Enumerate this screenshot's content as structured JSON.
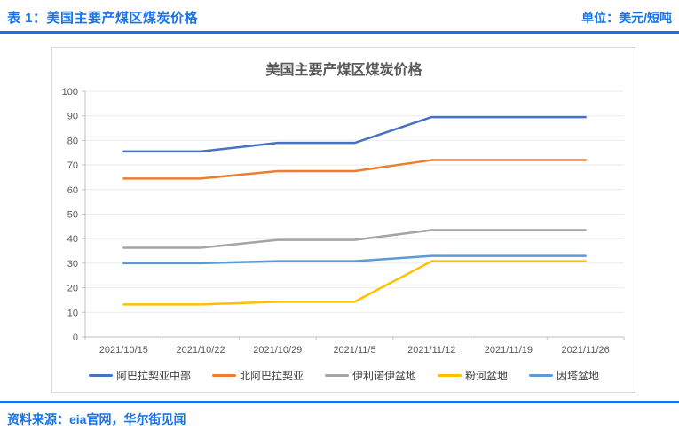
{
  "header": {
    "title": "表 1：美国主要产煤区煤炭价格",
    "unit": "单位：美元/短吨"
  },
  "footer": {
    "source": "资料来源：eia官网，华尔街见闻"
  },
  "colors": {
    "accent_blue": "#1673E8",
    "chart_border": "#D9D9D9",
    "grid_line": "#EBEBEB",
    "axis_line": "#BFBFBF",
    "chart_title_gray": "#595959",
    "tick_text": "#595959",
    "legend_text": "#404040"
  },
  "chart_data": {
    "type": "line",
    "title": "美国主要产煤区煤炭价格",
    "xlabel": "",
    "ylabel": "",
    "x": [
      "2021/10/15",
      "2021/10/22",
      "2021/10/29",
      "2021/11/5",
      "2021/11/12",
      "2021/11/19",
      "2021/11/26"
    ],
    "ylim": [
      0,
      100
    ],
    "ytick_step": 10,
    "grid": true,
    "legend_position": "bottom",
    "series": [
      {
        "name": "阿巴拉契亚中部",
        "color": "#4472C4",
        "values": [
          75.5,
          75.5,
          79,
          79,
          89.5,
          89.5,
          89.5
        ]
      },
      {
        "name": "北阿巴拉契亚",
        "color": "#ED7D31",
        "values": [
          64.5,
          64.5,
          67.5,
          67.5,
          72,
          72,
          72
        ]
      },
      {
        "name": "伊利诺伊盆地",
        "color": "#A5A5A5",
        "values": [
          36.3,
          36.3,
          39.5,
          39.5,
          43.5,
          43.5,
          43.5
        ]
      },
      {
        "name": "粉河盆地",
        "color": "#FFC000",
        "values": [
          13.2,
          13.2,
          14.3,
          14.3,
          30.8,
          30.8,
          30.8
        ]
      },
      {
        "name": "因塔盆地",
        "color": "#5B9BD5",
        "values": [
          30,
          30,
          30.8,
          30.8,
          33,
          33,
          33
        ]
      }
    ]
  }
}
